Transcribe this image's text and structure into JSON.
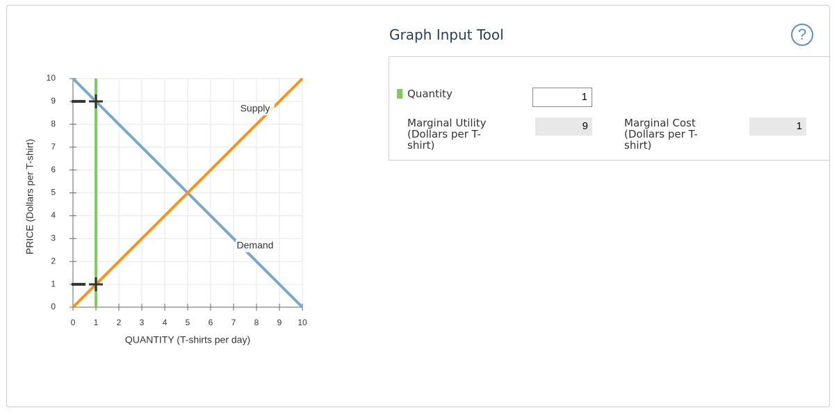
{
  "chart_data": {
    "type": "line",
    "x_label": "QUANTITY (T-shirts per day)",
    "y_label": "PRICE (Dollars per T-shirt)",
    "x": [
      0,
      10
    ],
    "series": [
      {
        "name": "Demand",
        "color": "#7ba7cf",
        "values": [
          10,
          0
        ]
      },
      {
        "name": "Supply",
        "color": "#f7941d",
        "values": [
          0,
          10
        ]
      }
    ],
    "xlim": [
      0,
      10
    ],
    "ylim": [
      0,
      10
    ],
    "xticks": [
      0,
      1,
      2,
      3,
      4,
      5,
      6,
      7,
      8,
      9,
      10
    ],
    "yticks": [
      0,
      1,
      2,
      3,
      4,
      5,
      6,
      7,
      8,
      9,
      10
    ],
    "grid": true
  },
  "tool": {
    "title": "Graph Input Tool",
    "help": "?",
    "quantity_label": "Quantity",
    "quantity": 1,
    "quantity_color": "#7dcc5c",
    "mu_label": "Marginal Utility (Dollars per T-shirt)",
    "mu": 9,
    "mc_label": "Marginal Cost (Dollars per T-shirt)",
    "mc": 1
  }
}
